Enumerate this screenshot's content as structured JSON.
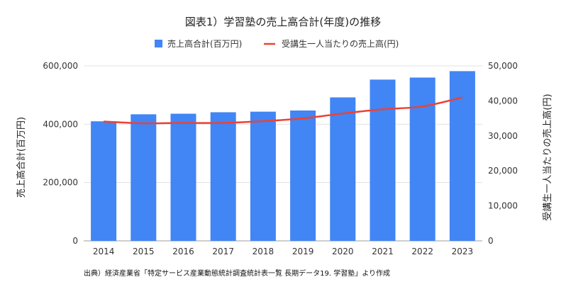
{
  "chart_data": {
    "type": "bar",
    "title": "図表1）学習塾の売上高合計(年度)の推移",
    "categories": [
      "2014",
      "2015",
      "2016",
      "2017",
      "2018",
      "2019",
      "2020",
      "2021",
      "2022",
      "2023"
    ],
    "series": [
      {
        "name": "売上高合計(百万円)",
        "type": "bar",
        "axis": "left",
        "color": "#4285f4",
        "values": [
          410000,
          434000,
          436000,
          441000,
          443000,
          447000,
          492000,
          553000,
          560000,
          582000
        ]
      },
      {
        "name": "受講生一人当たりの売上高(円)",
        "type": "line",
        "axis": "right",
        "color": "#ea4335",
        "values": [
          34100,
          33600,
          33700,
          33700,
          34200,
          35000,
          36400,
          37600,
          38400,
          41000
        ]
      }
    ],
    "y_left": {
      "label": "売上高合計(百万円)",
      "range": [
        0,
        600000
      ],
      "ticks": [
        "0",
        "200,000",
        "400,000",
        "600,000"
      ],
      "tick_values": [
        0,
        200000,
        400000,
        600000
      ]
    },
    "y_right": {
      "label": "受講生一人当たりの売上高(円)",
      "range": [
        0,
        50000
      ],
      "ticks": [
        "0",
        "10,000",
        "20,000",
        "30,000",
        "40,000",
        "50,000"
      ],
      "tick_values": [
        0,
        10000,
        20000,
        30000,
        40000,
        50000
      ]
    },
    "gridlines": true,
    "legend_position": "top"
  },
  "source_note": "出典）経済産業省「特定サービス産業動態統計調査統計表一覧 長期データ19. 学習塾」より作成"
}
